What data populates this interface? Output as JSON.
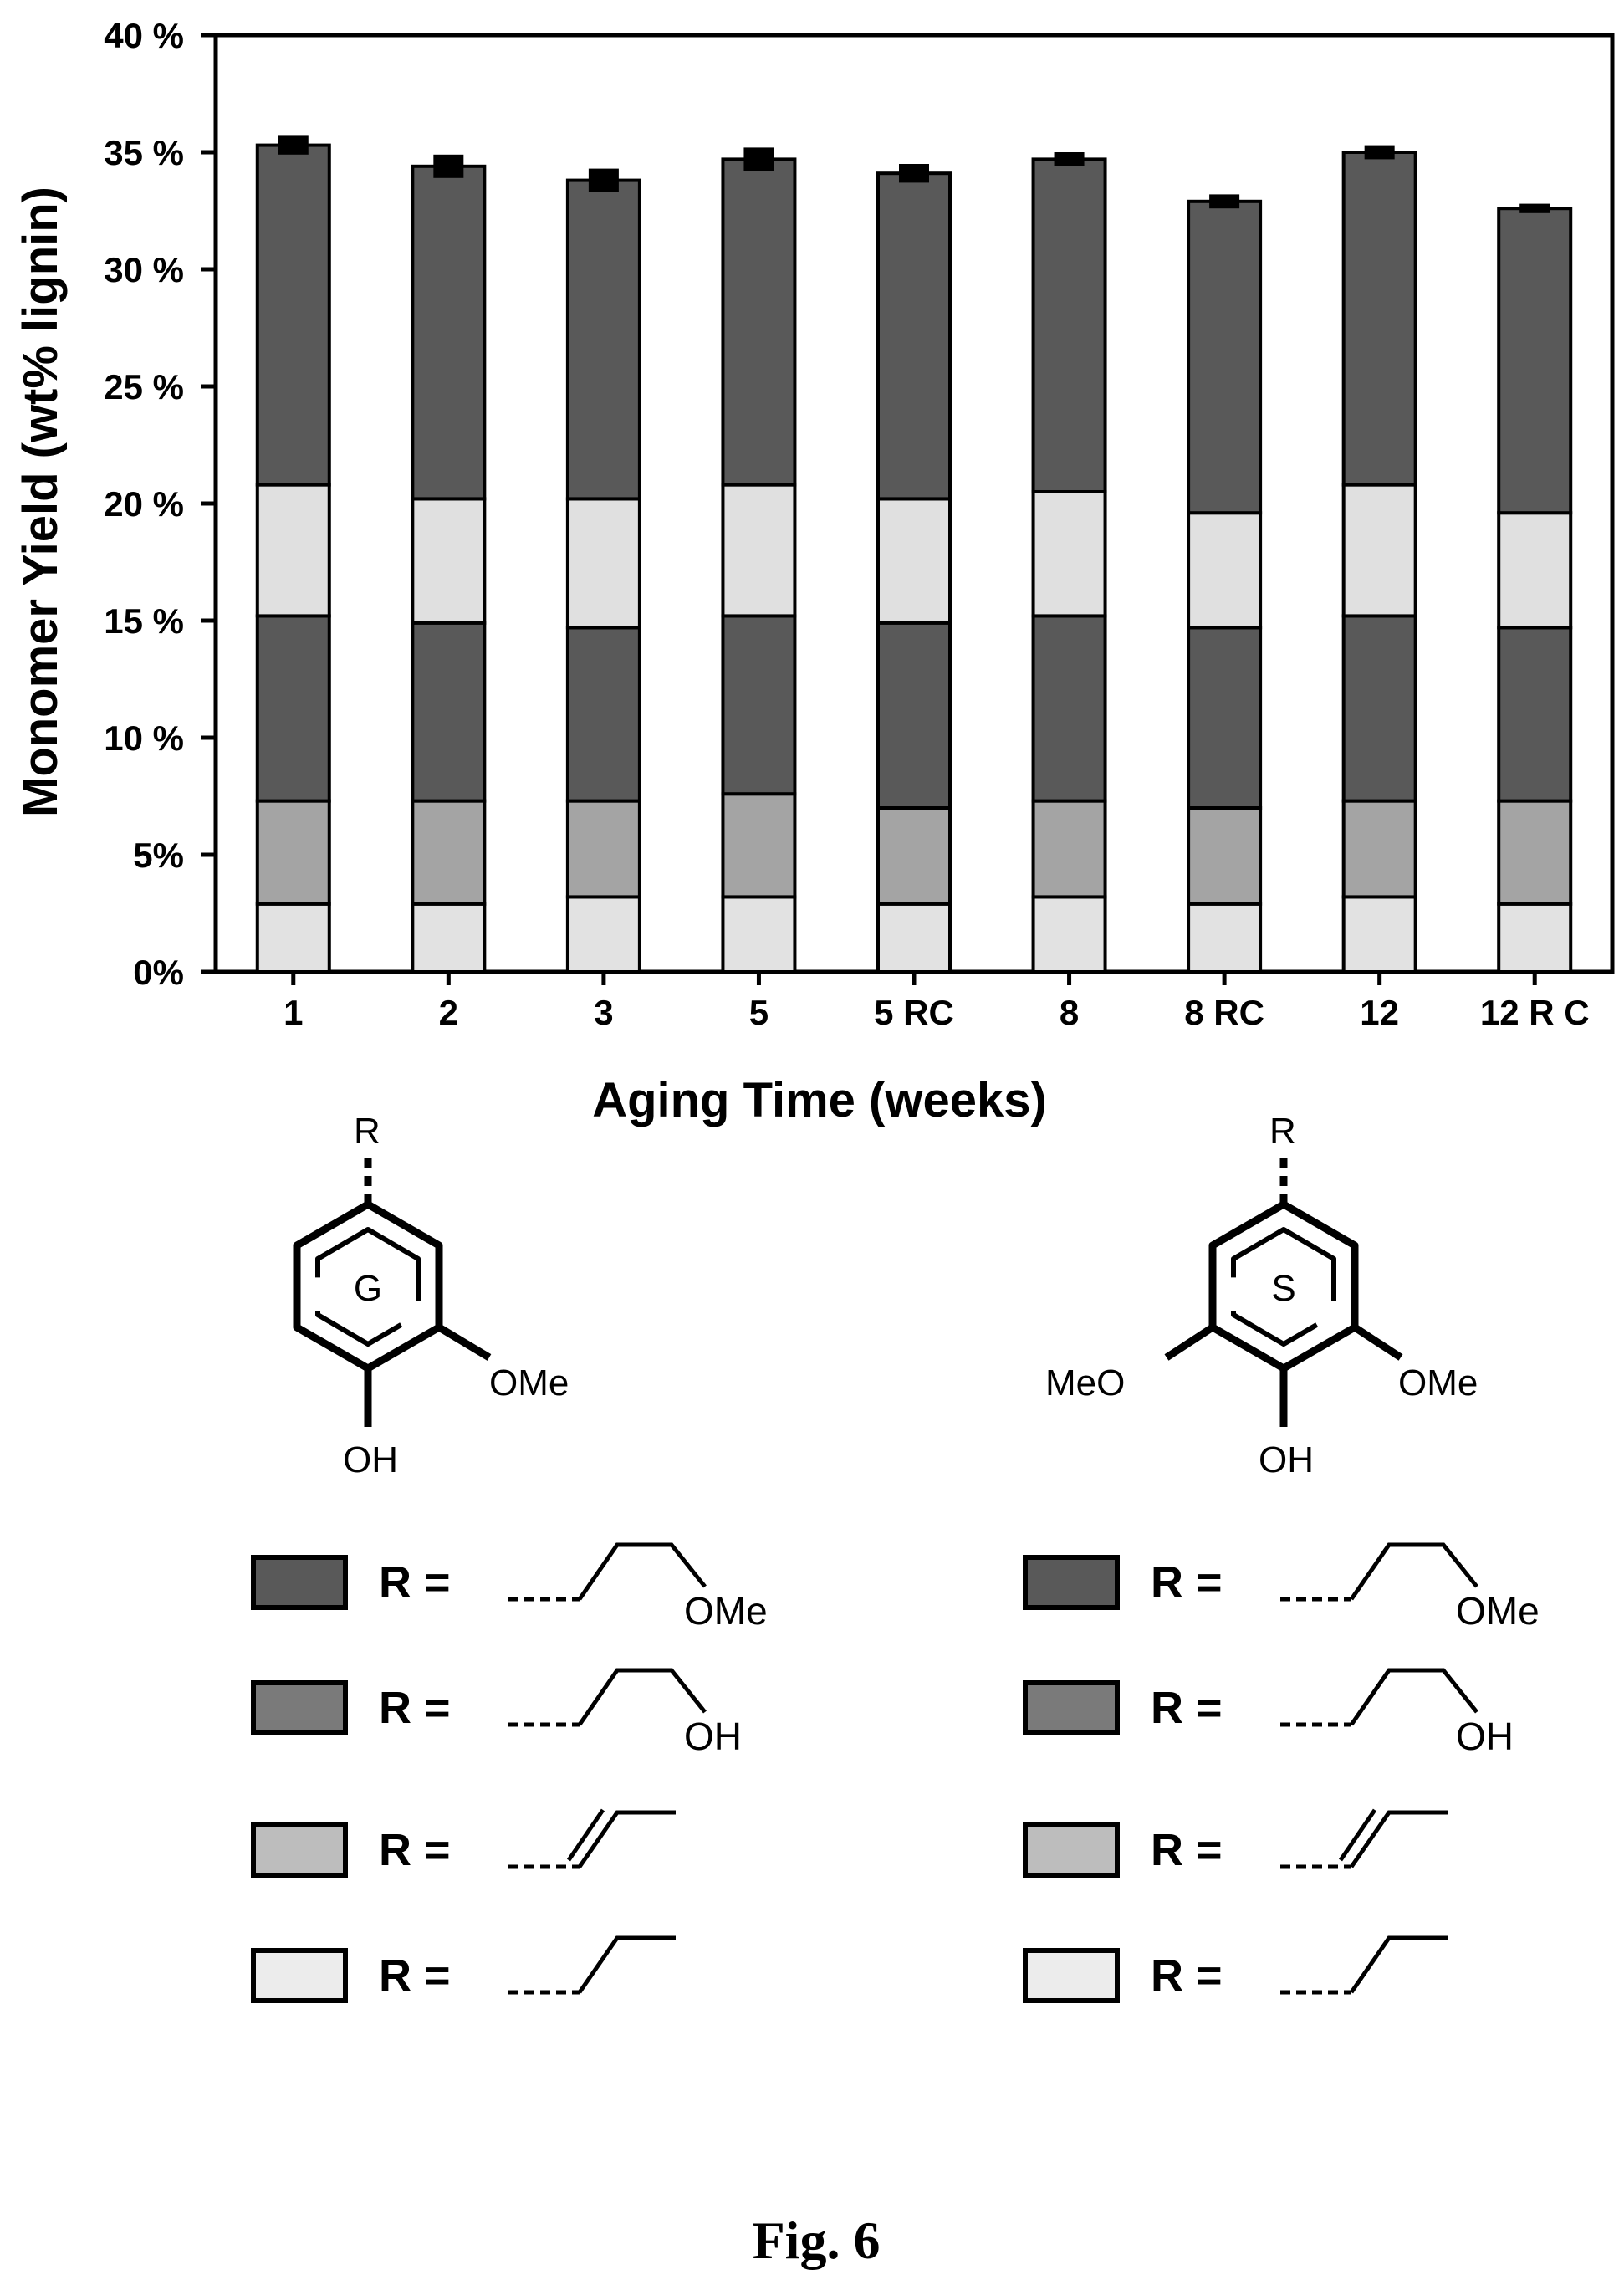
{
  "chart_data": {
    "type": "bar",
    "stacked": true,
    "xlabel": "Aging Time (weeks)",
    "ylabel": "Monomer Yield (wt% lignin)",
    "ylim": [
      0,
      40
    ],
    "yticks": [
      0,
      5,
      10,
      15,
      20,
      25,
      30,
      35,
      40
    ],
    "ytick_labels": [
      "0%",
      "5%",
      "10 %",
      "15 %",
      "20 %",
      "25 %",
      "30 %",
      "35 %",
      "40 %"
    ],
    "categories": [
      "1",
      "2",
      "3",
      "5",
      "5 RC",
      "8",
      "8 RC",
      "12",
      "12 R C"
    ],
    "series": [
      {
        "color": "#e2e2e2",
        "values": [
          2.9,
          2.9,
          3.2,
          3.2,
          2.9,
          3.2,
          2.9,
          3.2,
          2.9
        ]
      },
      {
        "color": "#a4a4a4",
        "values": [
          4.4,
          4.4,
          4.1,
          4.4,
          4.1,
          4.1,
          4.1,
          4.1,
          4.4
        ]
      },
      {
        "color": "#595959",
        "values": [
          7.9,
          7.6,
          7.4,
          7.6,
          7.9,
          7.9,
          7.7,
          7.9,
          7.4
        ]
      },
      {
        "color": "#e0e0e0",
        "values": [
          5.6,
          5.3,
          5.5,
          5.6,
          5.3,
          5.3,
          4.9,
          5.6,
          4.9
        ]
      },
      {
        "color": "#595959",
        "values": [
          14.5,
          14.2,
          13.6,
          13.9,
          13.9,
          14.2,
          13.3,
          14.2,
          13.0
        ]
      }
    ],
    "error_bars": [
      0.4,
      0.5,
      0.5,
      0.5,
      0.4,
      0.3,
      0.3,
      0.3,
      0.2
    ],
    "grid": false,
    "legend": "below"
  },
  "structures": {
    "g_ring_label": "G",
    "s_ring_label": "S",
    "r_top": "R",
    "oh": "OH",
    "ome": "OMe",
    "meo": "MeO"
  },
  "legend": {
    "r_equals": "R =",
    "entries": [
      {
        "color": "#595959",
        "tail": "OMe"
      },
      {
        "color": "#7a7a7a",
        "tail": "OH"
      },
      {
        "color": "#bdbdbd",
        "tail": ""
      },
      {
        "color": "#ececec",
        "tail": ""
      }
    ]
  },
  "caption": "Fig. 6"
}
